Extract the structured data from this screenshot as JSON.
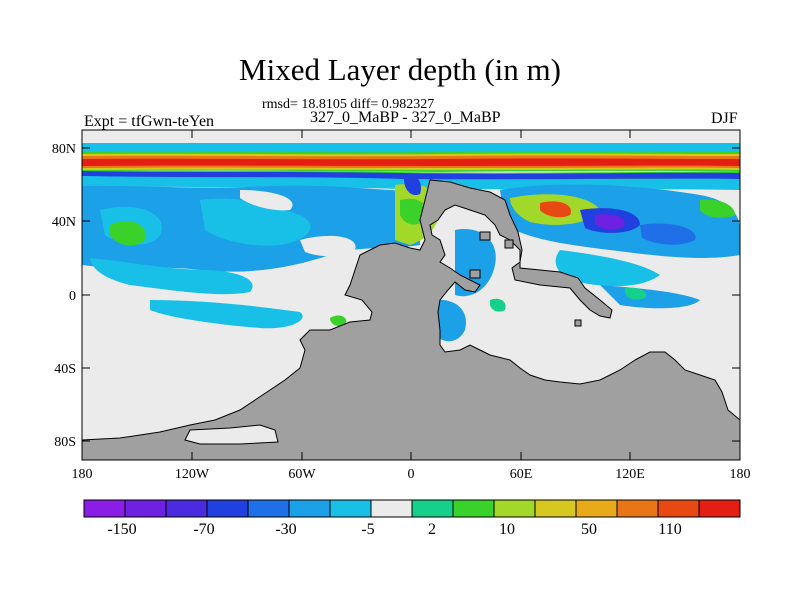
{
  "title": "Mixed Layer depth (in m)",
  "stats": "rmsd= 18.8105 diff= 0.982327",
  "subtitle": "327_0_MaBP - 327_0_MaBP",
  "left_label": "Expt = tfGwn-teYen",
  "right_label": "DJF",
  "axes": {
    "lat_ticks": [
      "80N",
      "40N",
      "0",
      "40S",
      "80S"
    ],
    "lon_ticks": [
      "180",
      "120W",
      "60W",
      "0",
      "60E",
      "120E",
      "180"
    ]
  },
  "colorbar": {
    "colors": [
      "#8a1ee6",
      "#6e21e0",
      "#4a2be0",
      "#2040e0",
      "#1f6fe8",
      "#1ca0e8",
      "#18c0e8",
      "#ebebeb",
      "#14d08a",
      "#3ad22a",
      "#a2d82a",
      "#d6c81e",
      "#e8aa18",
      "#e87616",
      "#e84812",
      "#e41e12"
    ],
    "labels": [
      "-150",
      "-70",
      "-30",
      "-5",
      "2",
      "10",
      "50",
      "110"
    ]
  },
  "colors": {
    "land": "#a0a0a0",
    "background_field": "#ebebeb"
  }
}
